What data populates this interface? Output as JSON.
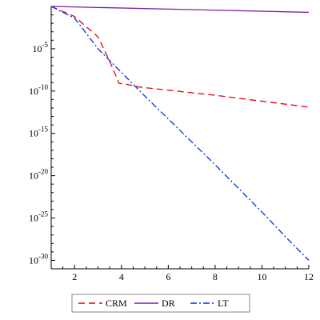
{
  "chart_data": {
    "type": "line",
    "title": "",
    "xlabel": "",
    "ylabel": "",
    "x_scale": "linear",
    "y_scale": "log10",
    "xlim": [
      1,
      12
    ],
    "ylim_exponent": [
      -31,
      0
    ],
    "x_ticks": [
      2,
      4,
      6,
      8,
      10,
      12
    ],
    "y_ticks": [
      {
        "base": "10",
        "exp": "-5",
        "value": -5
      },
      {
        "base": "10",
        "exp": "-10",
        "value": -10
      },
      {
        "base": "10",
        "exp": "-15",
        "value": -15
      },
      {
        "base": "10",
        "exp": "-20",
        "value": -20
      },
      {
        "base": "10",
        "exp": "-25",
        "value": -25
      },
      {
        "base": "10",
        "exp": "-30",
        "value": -30
      }
    ],
    "grid": false,
    "legend_position": "bottom",
    "series": [
      {
        "name": "CRM",
        "color": "#e8000b",
        "dash": "dashed",
        "x": [
          1,
          2,
          3,
          3.5,
          3.9,
          4.2,
          4.7,
          5,
          6,
          8,
          10,
          12
        ],
        "log10y": [
          0,
          -1.2,
          -3.6,
          -6.5,
          -9.1,
          -9.2,
          -9.5,
          -9.6,
          -9.9,
          -10.5,
          -11.2,
          -11.9
        ]
      },
      {
        "name": "DR",
        "color": "#7b1fa2",
        "dash": "solid",
        "x": [
          1,
          12
        ],
        "log10y": [
          0,
          -0.7
        ]
      },
      {
        "name": "LT",
        "color": "#0033dd",
        "dash": "dashdot",
        "x": [
          1,
          2,
          3,
          4,
          5,
          6,
          7,
          8,
          9,
          10,
          11,
          12
        ],
        "log10y": [
          0,
          -1.4,
          -5.0,
          -7.8,
          -10.6,
          -13.3,
          -16.0,
          -18.7,
          -21.5,
          -24.3,
          -27.2,
          -30.0
        ]
      }
    ]
  }
}
